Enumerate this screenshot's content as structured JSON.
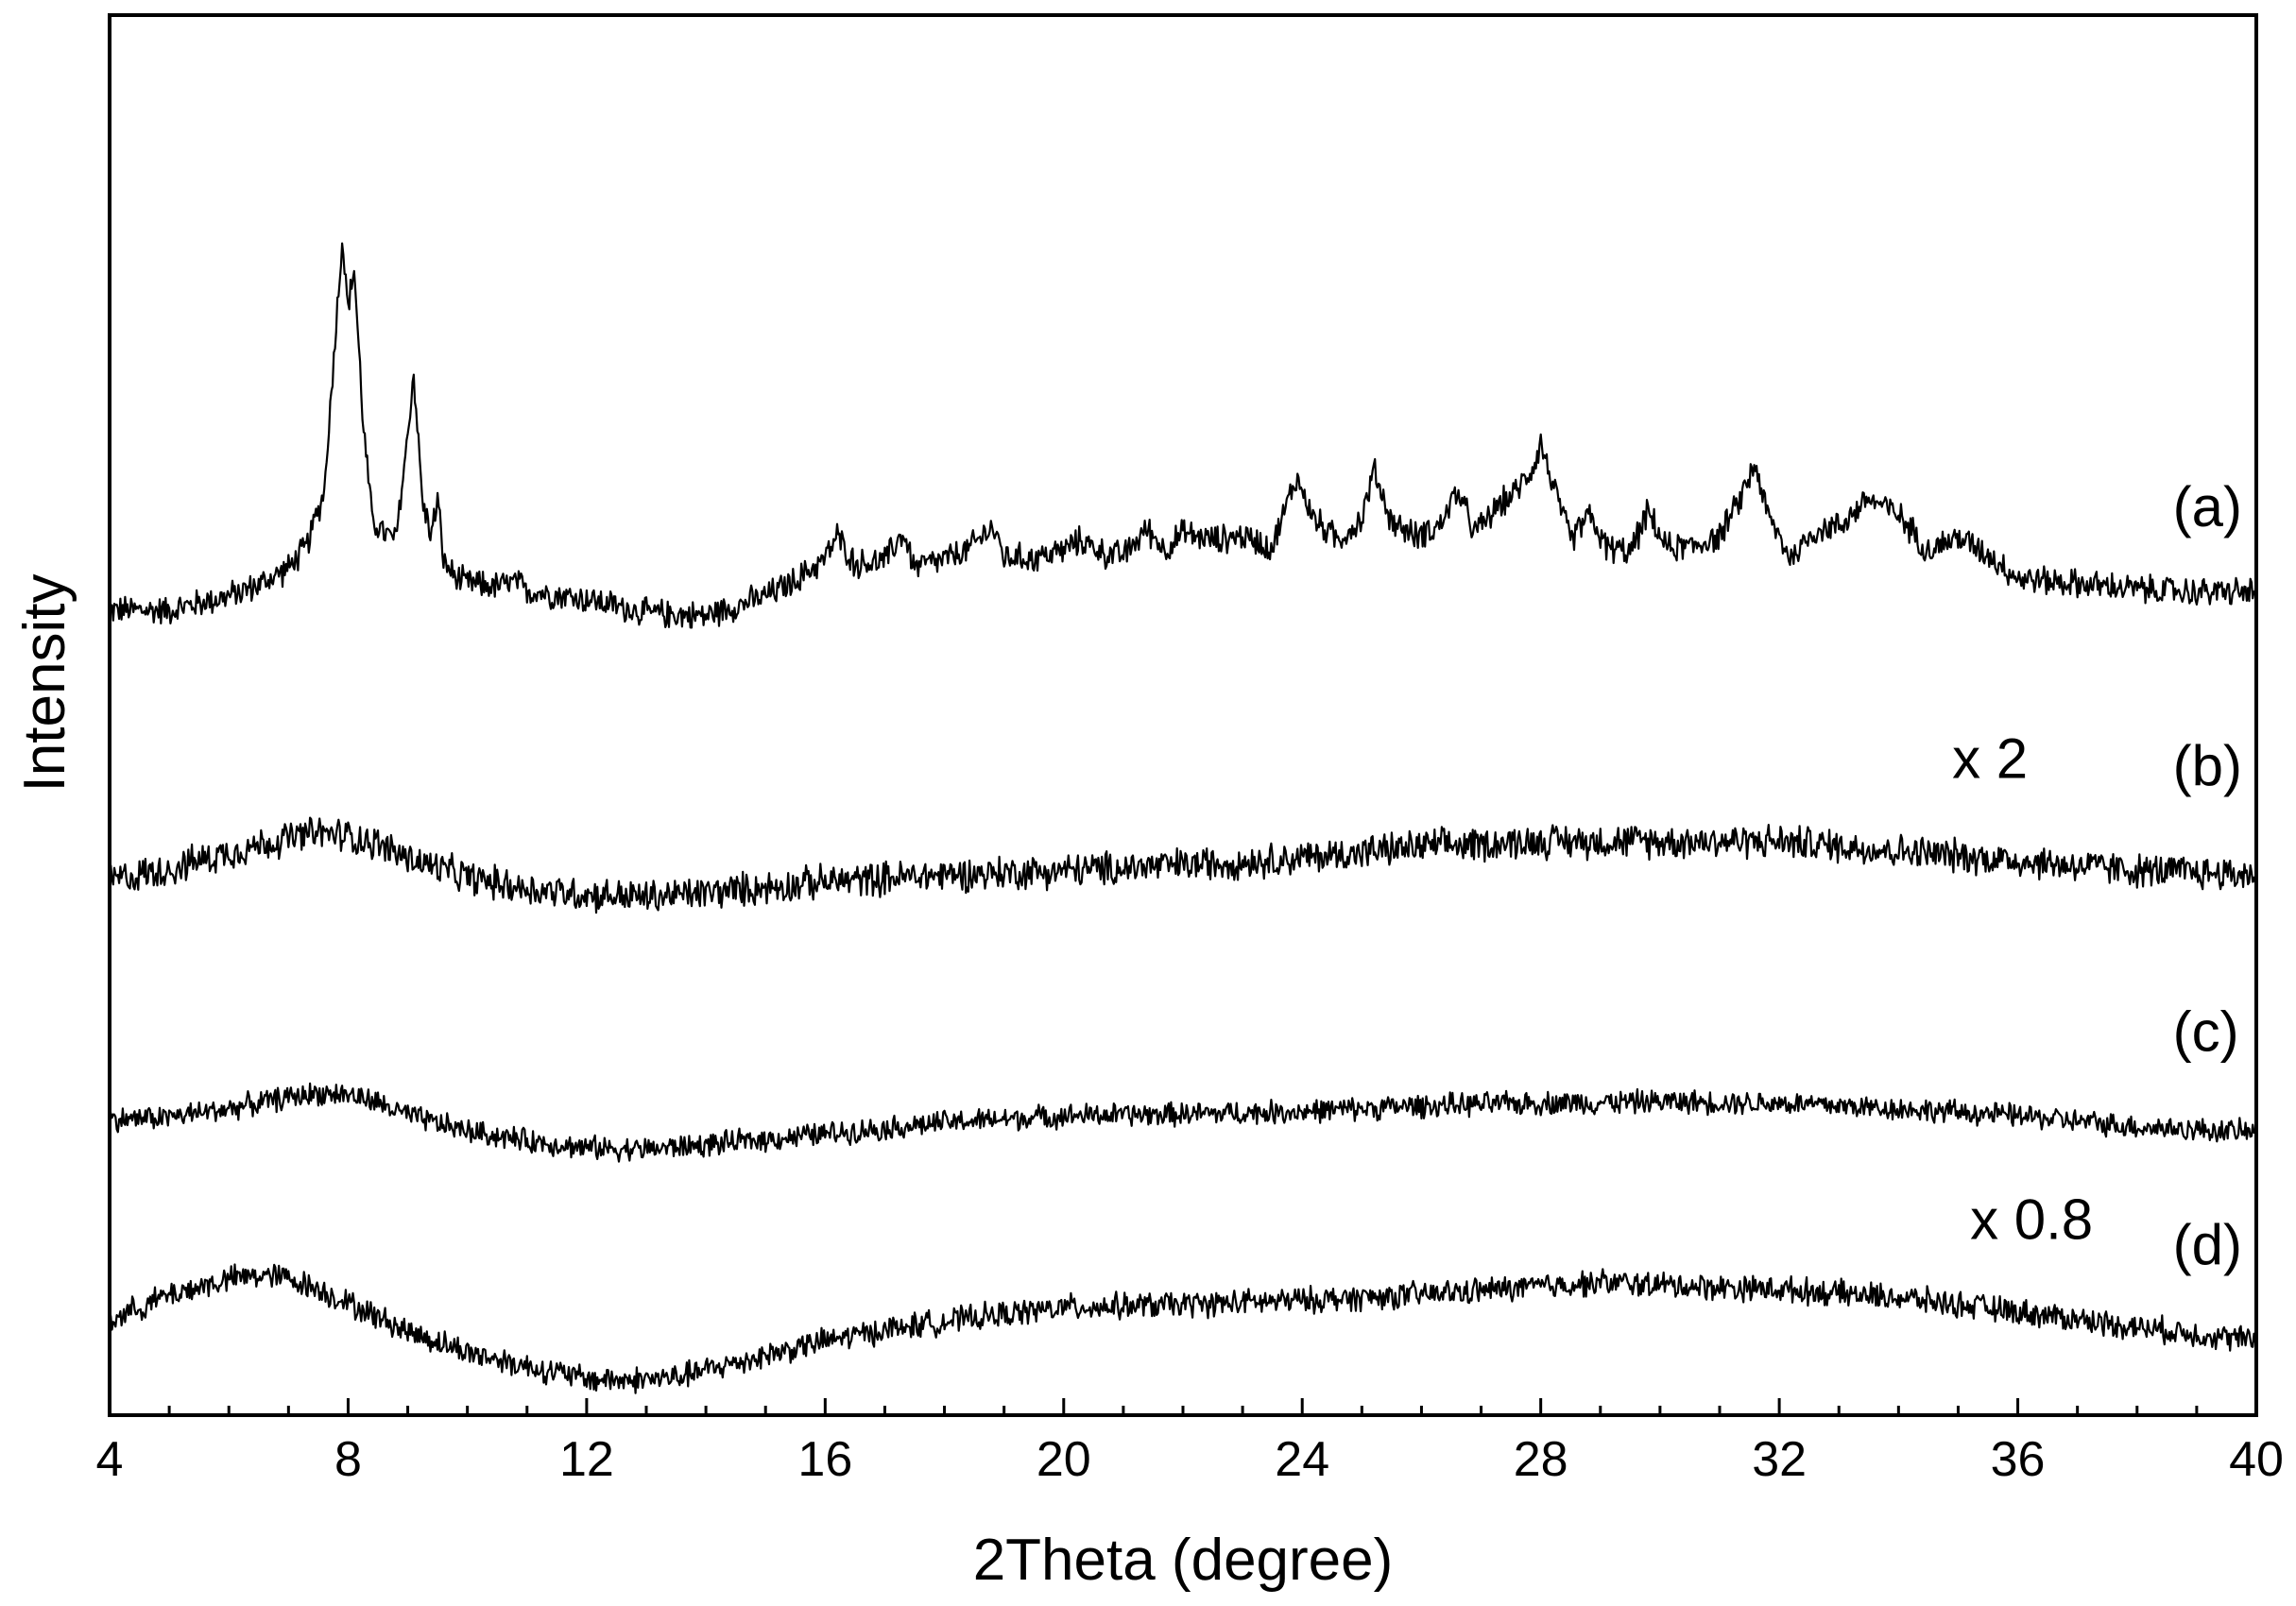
{
  "chart_data": {
    "type": "line",
    "title": "",
    "xlabel": "2Theta (degree)",
    "ylabel": "Intensity",
    "xlim": [
      4,
      40
    ],
    "ylim": [
      0,
      100
    ],
    "y_ticks_shown": false,
    "grid": false,
    "legend": "none",
    "x_ticks": [
      "4",
      "8",
      "12",
      "16",
      "20",
      "24",
      "28",
      "32",
      "36",
      "40"
    ],
    "x_minor_step": 1,
    "line_color": "#000000",
    "annotations": [
      {
        "text": "(a)",
        "x": 38.6,
        "y": 63.5
      },
      {
        "text": "x 2",
        "x": 34.9,
        "y": 45.5
      },
      {
        "text": "(b)",
        "x": 38.6,
        "y": 45.0
      },
      {
        "text": "(c)",
        "x": 38.6,
        "y": 26.0
      },
      {
        "text": "(d)",
        "x": 38.6,
        "y": 10.8
      },
      {
        "text": "x 0.8",
        "x": 35.2,
        "y": 12.6
      }
    ],
    "series": [
      {
        "label": "(a)",
        "noise": 1.1,
        "x": [
          4,
          5,
          6,
          6.5,
          7,
          7.3,
          7.6,
          7.75,
          7.9,
          8.0,
          8.1,
          8.25,
          8.4,
          8.6,
          8.8,
          9.0,
          9.1,
          9.25,
          9.4,
          9.5,
          9.6,
          9.8,
          10,
          10.5,
          10.8,
          11,
          12,
          13,
          14,
          15,
          15.5,
          16,
          16.2,
          16.5,
          17,
          17.3,
          17.5,
          18,
          18.4,
          18.8,
          19,
          19.5,
          20,
          20.3,
          20.7,
          21,
          21.4,
          21.7,
          22,
          22.5,
          23,
          23.5,
          23.9,
          24.2,
          24.6,
          25,
          25.2,
          25.5,
          25.9,
          26.3,
          26.6,
          26.9,
          27.3,
          27.6,
          27.9,
          28.0,
          28.2,
          28.5,
          28.8,
          29.1,
          29.5,
          29.8,
          30.1,
          30.5,
          31,
          31.3,
          31.6,
          31.8,
          32.2,
          32.6,
          33,
          33.5,
          34,
          34.5,
          35,
          35.5,
          36,
          37,
          38,
          39,
          40
        ],
        "y": [
          57.5,
          57.5,
          58.5,
          59.3,
          60.5,
          62.0,
          66.0,
          75.0,
          84.0,
          79.0,
          82.0,
          71.0,
          64.0,
          63.0,
          62.5,
          70.0,
          74.5,
          65.0,
          63.0,
          65.5,
          61.0,
          59.8,
          59.4,
          59.2,
          59.5,
          58.9,
          58.3,
          57.3,
          57.1,
          58.5,
          59.6,
          61.2,
          62.8,
          60.8,
          61.0,
          63.0,
          60.6,
          61.1,
          61.8,
          63.5,
          61.3,
          61.2,
          61.8,
          62.5,
          61.5,
          61.4,
          63.3,
          61.8,
          63.0,
          62.5,
          62.8,
          62.0,
          67.0,
          64.0,
          62.5,
          64.0,
          67.5,
          63.8,
          62.8,
          63.5,
          66.0,
          63.0,
          65.0,
          66.0,
          68.0,
          69.5,
          66.5,
          62.5,
          64.3,
          62.0,
          61.6,
          64.5,
          62.0,
          62.0,
          62.8,
          65.0,
          68.0,
          64.3,
          61.2,
          63.2,
          63.5,
          65.5,
          64.3,
          61.8,
          62.7,
          61.5,
          59.8,
          59.4,
          59.0,
          58.8,
          58.8
        ]
      },
      {
        "label": "(b)",
        "noise": 1.3,
        "x": [
          4,
          5,
          6,
          7,
          7.5,
          8,
          8.5,
          9,
          10,
          11,
          12,
          13,
          14,
          16,
          18,
          20,
          22,
          24,
          26,
          28,
          30,
          32,
          34,
          36,
          38,
          40
        ],
        "y": [
          38.2,
          39.0,
          40.2,
          41.2,
          41.6,
          41.4,
          40.8,
          39.8,
          38.4,
          37.6,
          37.2,
          37.0,
          37.3,
          38.1,
          38.6,
          38.9,
          39.3,
          39.8,
          40.6,
          41.0,
          41.0,
          41.0,
          40.3,
          39.6,
          38.9,
          38.6
        ]
      },
      {
        "label": "(c)",
        "noise": 0.9,
        "x": [
          4,
          5,
          6,
          7,
          7.5,
          8,
          8.5,
          9,
          10,
          11,
          12,
          13,
          14,
          16,
          18,
          20,
          22,
          24,
          26,
          28,
          30,
          32,
          34,
          36,
          38,
          40
        ],
        "y": [
          21.1,
          21.3,
          21.9,
          22.7,
          23.0,
          22.9,
          22.3,
          21.4,
          20.3,
          19.6,
          19.1,
          19.0,
          19.3,
          20.1,
          20.9,
          21.4,
          21.5,
          21.7,
          22.1,
          22.3,
          22.4,
          22.3,
          21.9,
          21.4,
          20.6,
          20.2
        ]
      },
      {
        "label": "(d)",
        "noise": 1.0,
        "x": [
          4,
          5,
          6,
          6.5,
          7,
          7.5,
          8,
          8.5,
          9,
          10,
          11,
          12,
          12.7,
          13.5,
          14,
          15,
          16,
          17,
          18,
          20,
          22,
          24,
          26,
          28,
          29,
          30,
          32,
          34,
          36,
          38,
          40
        ],
        "y": [
          6.8,
          8.6,
          9.7,
          10.0,
          9.8,
          9.0,
          8.0,
          7.0,
          6.0,
          4.5,
          3.5,
          2.6,
          2.5,
          2.7,
          3.2,
          4.3,
          5.3,
          6.1,
          6.7,
          7.7,
          7.9,
          8.2,
          8.6,
          9.2,
          9.5,
          9.3,
          9.0,
          8.4,
          7.4,
          6.3,
          5.3
        ]
      }
    ]
  }
}
